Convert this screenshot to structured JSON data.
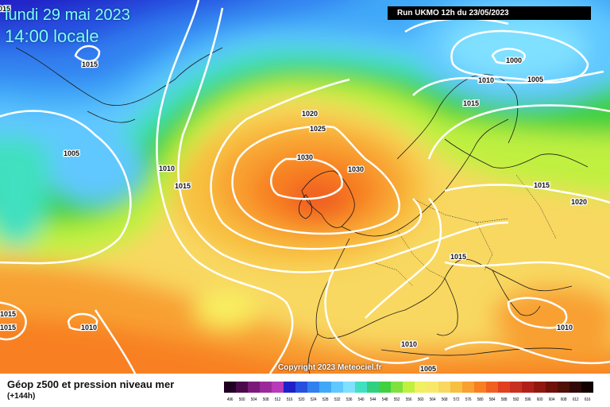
{
  "header": {
    "date": "lundi 29 mai 2023",
    "time": "14:00 locale",
    "run": "Run UKMO 12h du 23/05/2023",
    "corner_fragment": "015"
  },
  "footer": {
    "title": "Géop z500 et pression niveau mer",
    "lead": "(+144h)",
    "copyright": "Copyright 2023 Meteociel.fr"
  },
  "isobar_labels": [
    "1015",
    "1005",
    "1010",
    "1015",
    "1020",
    "1025",
    "1030",
    "1030",
    "1000",
    "1010",
    "1005",
    "1015",
    "1015",
    "1020",
    "1015",
    "1015",
    "1015",
    "1010",
    "1010",
    "1010",
    "1005"
  ],
  "colorbar": {
    "ticks": [
      "496",
      "500",
      "504",
      "508",
      "512",
      "516",
      "520",
      "524",
      "528",
      "532",
      "536",
      "540",
      "544",
      "548",
      "552",
      "556",
      "560",
      "564",
      "568",
      "572",
      "576",
      "580",
      "584",
      "588",
      "592",
      "596",
      "600",
      "604",
      "608",
      "612",
      "616"
    ],
    "colors": [
      "#200020",
      "#4a0a4a",
      "#7a1a7a",
      "#9a2a9a",
      "#b83ab8",
      "#2020c8",
      "#2850e0",
      "#3080f0",
      "#40a8f8",
      "#60c8ff",
      "#80e0ff",
      "#40e0c0",
      "#30d080",
      "#40d040",
      "#80e040",
      "#c0f040",
      "#f0f060",
      "#f8e868",
      "#f8d860",
      "#f8c040",
      "#f8a030",
      "#f88020",
      "#f06020",
      "#e04020",
      "#c83020",
      "#b02018",
      "#901810",
      "#701008",
      "#501008",
      "#300808",
      "#100000"
    ]
  }
}
